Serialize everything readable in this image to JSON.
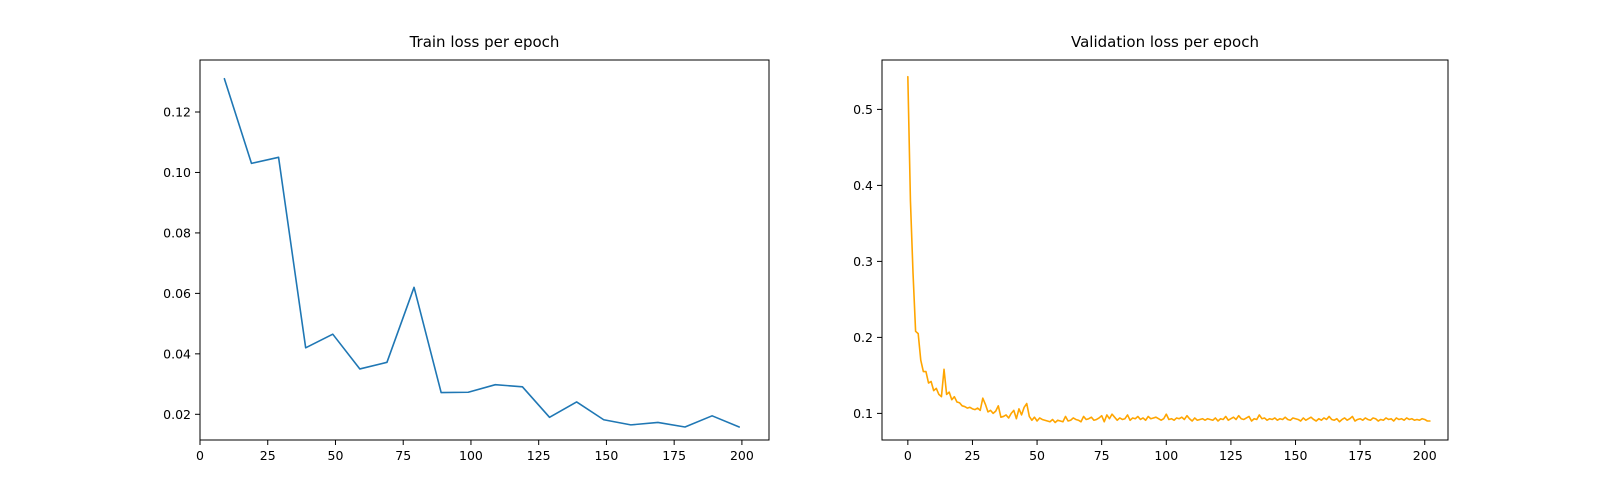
{
  "chart_data": [
    {
      "type": "line",
      "title": "Train loss per epoch",
      "xlabel": "",
      "ylabel": "",
      "xlim": [
        0,
        210
      ],
      "ylim": [
        0.0115,
        0.1372
      ],
      "grid": false,
      "x_ticks": [
        0,
        25,
        50,
        75,
        100,
        125,
        150,
        175,
        200
      ],
      "y_ticks": [
        0.02,
        0.04,
        0.06,
        0.08,
        0.1,
        0.12
      ],
      "y_tick_labels": [
        "0.02",
        "0.04",
        "0.06",
        "0.08",
        "0.10",
        "0.12"
      ],
      "series": [
        {
          "name": "train_loss",
          "color": "#1f77b4",
          "x": [
            9,
            19,
            29,
            39,
            49,
            59,
            69,
            79,
            89,
            99,
            109,
            119,
            129,
            139,
            149,
            159,
            169,
            179,
            189,
            199
          ],
          "y": [
            0.131,
            0.103,
            0.105,
            0.042,
            0.0465,
            0.035,
            0.0372,
            0.062,
            0.0272,
            0.0273,
            0.0298,
            0.0291,
            0.019,
            0.0241,
            0.0182,
            0.0165,
            0.0173,
            0.0158,
            0.0195,
            0.0158
          ]
        }
      ]
    },
    {
      "type": "line",
      "title": "Validation loss per epoch",
      "xlabel": "",
      "ylabel": "",
      "xlim": [
        -10,
        209
      ],
      "ylim": [
        0.065,
        0.565
      ],
      "grid": false,
      "x_ticks": [
        0,
        25,
        50,
        75,
        100,
        125,
        150,
        175,
        200
      ],
      "y_ticks": [
        0.1,
        0.2,
        0.3,
        0.4,
        0.5
      ],
      "y_tick_labels": [
        "0.1",
        "0.2",
        "0.3",
        "0.4",
        "0.5"
      ],
      "series": [
        {
          "name": "val_loss",
          "color": "#ffa500",
          "x_start": 0,
          "x_step": 1,
          "y": [
            0.543,
            0.38,
            0.285,
            0.208,
            0.205,
            0.17,
            0.155,
            0.155,
            0.14,
            0.142,
            0.13,
            0.133,
            0.125,
            0.122,
            0.158,
            0.125,
            0.128,
            0.118,
            0.122,
            0.115,
            0.114,
            0.11,
            0.109,
            0.107,
            0.108,
            0.106,
            0.105,
            0.107,
            0.104,
            0.12,
            0.112,
            0.102,
            0.104,
            0.1,
            0.103,
            0.11,
            0.095,
            0.096,
            0.098,
            0.094,
            0.1,
            0.104,
            0.093,
            0.106,
            0.098,
            0.108,
            0.113,
            0.096,
            0.091,
            0.095,
            0.09,
            0.094,
            0.092,
            0.091,
            0.09,
            0.089,
            0.092,
            0.088,
            0.091,
            0.09,
            0.089,
            0.096,
            0.09,
            0.091,
            0.094,
            0.092,
            0.091,
            0.089,
            0.096,
            0.092,
            0.093,
            0.095,
            0.091,
            0.092,
            0.094,
            0.097,
            0.089,
            0.098,
            0.093,
            0.099,
            0.095,
            0.091,
            0.094,
            0.092,
            0.093,
            0.098,
            0.091,
            0.094,
            0.093,
            0.096,
            0.092,
            0.094,
            0.091,
            0.096,
            0.093,
            0.094,
            0.095,
            0.093,
            0.091,
            0.093,
            0.099,
            0.092,
            0.093,
            0.091,
            0.094,
            0.093,
            0.095,
            0.092,
            0.097,
            0.093,
            0.09,
            0.094,
            0.091,
            0.092,
            0.093,
            0.091,
            0.093,
            0.092,
            0.091,
            0.094,
            0.09,
            0.093,
            0.092,
            0.096,
            0.091,
            0.093,
            0.095,
            0.092,
            0.097,
            0.093,
            0.092,
            0.094,
            0.096,
            0.09,
            0.093,
            0.092,
            0.098,
            0.093,
            0.094,
            0.091,
            0.093,
            0.092,
            0.094,
            0.091,
            0.093,
            0.092,
            0.095,
            0.092,
            0.091,
            0.094,
            0.093,
            0.092,
            0.09,
            0.094,
            0.091,
            0.093,
            0.095,
            0.092,
            0.09,
            0.093,
            0.091,
            0.094,
            0.092,
            0.096,
            0.092,
            0.091,
            0.093,
            0.089,
            0.092,
            0.094,
            0.091,
            0.093,
            0.096,
            0.09,
            0.092,
            0.093,
            0.091,
            0.094,
            0.092,
            0.091,
            0.094,
            0.093,
            0.09,
            0.092,
            0.091,
            0.094,
            0.092,
            0.093,
            0.09,
            0.094,
            0.092,
            0.093,
            0.091,
            0.094,
            0.092,
            0.093,
            0.091,
            0.092,
            0.091,
            0.093,
            0.092,
            0.09,
            0.09
          ]
        }
      ]
    }
  ]
}
